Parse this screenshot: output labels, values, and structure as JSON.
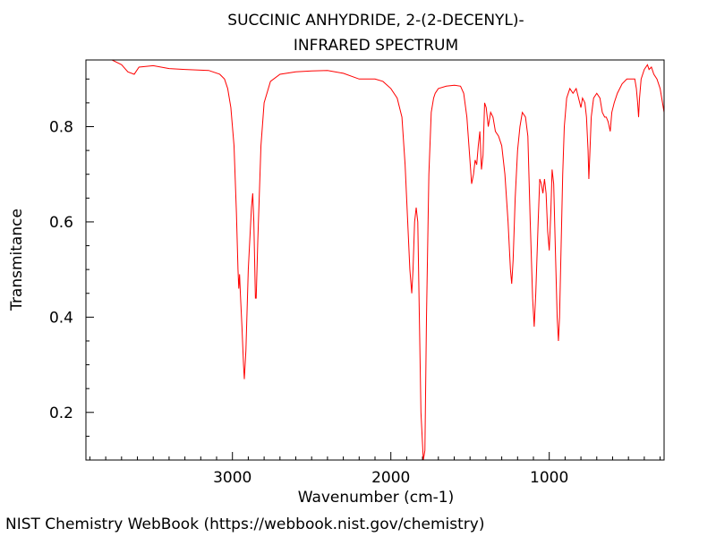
{
  "chart_data": {
    "type": "line",
    "title_line1": "SUCCINIC ANHYDRIDE, 2-(2-DECENYL)-",
    "title_line2": "INFRARED SPECTRUM",
    "xlabel": "Wavenumber (cm-1)",
    "ylabel": "Transmitance",
    "xlim": [
      3925,
      275
    ],
    "ylim": [
      0.1,
      0.94
    ],
    "x_ticks": [
      3000,
      2000,
      1000
    ],
    "x_tick_labels": [
      "3000",
      "2000",
      "1000"
    ],
    "y_ticks": [
      0.2,
      0.4,
      0.6,
      0.8
    ],
    "y_tick_labels": [
      "0.2",
      "0.4",
      "0.6",
      "0.8"
    ],
    "x_minor_step": 100,
    "y_minor_step": 0.05,
    "grid": false,
    "series": [
      {
        "name": "IR spectrum",
        "color": "#ff0000",
        "points": [
          [
            3920,
            0.94
          ],
          [
            3760,
            0.94
          ],
          [
            3700,
            0.93
          ],
          [
            3660,
            0.915
          ],
          [
            3620,
            0.91
          ],
          [
            3590,
            0.925
          ],
          [
            3500,
            0.928
          ],
          [
            3400,
            0.922
          ],
          [
            3300,
            0.92
          ],
          [
            3150,
            0.918
          ],
          [
            3080,
            0.91
          ],
          [
            3050,
            0.9
          ],
          [
            3030,
            0.88
          ],
          [
            3010,
            0.84
          ],
          [
            2990,
            0.76
          ],
          [
            2975,
            0.62
          ],
          [
            2965,
            0.5
          ],
          [
            2960,
            0.46
          ],
          [
            2955,
            0.49
          ],
          [
            2950,
            0.45
          ],
          [
            2940,
            0.38
          ],
          [
            2930,
            0.3
          ],
          [
            2925,
            0.27
          ],
          [
            2915,
            0.33
          ],
          [
            2900,
            0.5
          ],
          [
            2880,
            0.63
          ],
          [
            2872,
            0.66
          ],
          [
            2865,
            0.6
          ],
          [
            2855,
            0.44
          ],
          [
            2850,
            0.44
          ],
          [
            2840,
            0.56
          ],
          [
            2820,
            0.76
          ],
          [
            2800,
            0.85
          ],
          [
            2760,
            0.895
          ],
          [
            2700,
            0.91
          ],
          [
            2600,
            0.915
          ],
          [
            2500,
            0.917
          ],
          [
            2400,
            0.918
          ],
          [
            2300,
            0.912
          ],
          [
            2200,
            0.9
          ],
          [
            2100,
            0.9
          ],
          [
            2050,
            0.895
          ],
          [
            2000,
            0.88
          ],
          [
            1960,
            0.86
          ],
          [
            1930,
            0.82
          ],
          [
            1910,
            0.72
          ],
          [
            1880,
            0.5
          ],
          [
            1868,
            0.45
          ],
          [
            1860,
            0.5
          ],
          [
            1850,
            0.6
          ],
          [
            1840,
            0.63
          ],
          [
            1830,
            0.6
          ],
          [
            1820,
            0.4
          ],
          [
            1810,
            0.2
          ],
          [
            1795,
            0.1
          ],
          [
            1785,
            0.12
          ],
          [
            1775,
            0.4
          ],
          [
            1760,
            0.7
          ],
          [
            1745,
            0.83
          ],
          [
            1730,
            0.86
          ],
          [
            1720,
            0.87
          ],
          [
            1700,
            0.88
          ],
          [
            1650,
            0.885
          ],
          [
            1600,
            0.887
          ],
          [
            1560,
            0.885
          ],
          [
            1540,
            0.87
          ],
          [
            1520,
            0.82
          ],
          [
            1505,
            0.75
          ],
          [
            1490,
            0.68
          ],
          [
            1478,
            0.7
          ],
          [
            1468,
            0.73
          ],
          [
            1458,
            0.72
          ],
          [
            1448,
            0.76
          ],
          [
            1438,
            0.79
          ],
          [
            1428,
            0.71
          ],
          [
            1418,
            0.74
          ],
          [
            1408,
            0.85
          ],
          [
            1398,
            0.84
          ],
          [
            1385,
            0.8
          ],
          [
            1370,
            0.83
          ],
          [
            1355,
            0.82
          ],
          [
            1340,
            0.79
          ],
          [
            1320,
            0.78
          ],
          [
            1300,
            0.76
          ],
          [
            1280,
            0.7
          ],
          [
            1260,
            0.6
          ],
          [
            1245,
            0.5
          ],
          [
            1237,
            0.47
          ],
          [
            1228,
            0.52
          ],
          [
            1215,
            0.65
          ],
          [
            1200,
            0.75
          ],
          [
            1185,
            0.8
          ],
          [
            1170,
            0.83
          ],
          [
            1150,
            0.82
          ],
          [
            1135,
            0.78
          ],
          [
            1120,
            0.6
          ],
          [
            1105,
            0.44
          ],
          [
            1095,
            0.38
          ],
          [
            1085,
            0.45
          ],
          [
            1070,
            0.6
          ],
          [
            1060,
            0.69
          ],
          [
            1050,
            0.68
          ],
          [
            1040,
            0.66
          ],
          [
            1030,
            0.69
          ],
          [
            1020,
            0.66
          ],
          [
            1010,
            0.58
          ],
          [
            1000,
            0.54
          ],
          [
            990,
            0.62
          ],
          [
            982,
            0.71
          ],
          [
            972,
            0.68
          ],
          [
            962,
            0.55
          ],
          [
            950,
            0.4
          ],
          [
            942,
            0.35
          ],
          [
            935,
            0.4
          ],
          [
            925,
            0.55
          ],
          [
            915,
            0.7
          ],
          [
            905,
            0.8
          ],
          [
            890,
            0.86
          ],
          [
            870,
            0.88
          ],
          [
            850,
            0.87
          ],
          [
            830,
            0.88
          ],
          [
            815,
            0.86
          ],
          [
            800,
            0.84
          ],
          [
            790,
            0.86
          ],
          [
            775,
            0.85
          ],
          [
            765,
            0.82
          ],
          [
            755,
            0.75
          ],
          [
            750,
            0.69
          ],
          [
            744,
            0.74
          ],
          [
            735,
            0.82
          ],
          [
            720,
            0.86
          ],
          [
            700,
            0.87
          ],
          [
            680,
            0.86
          ],
          [
            665,
            0.83
          ],
          [
            650,
            0.82
          ],
          [
            640,
            0.82
          ],
          [
            628,
            0.81
          ],
          [
            615,
            0.79
          ],
          [
            605,
            0.83
          ],
          [
            590,
            0.85
          ],
          [
            570,
            0.87
          ],
          [
            540,
            0.89
          ],
          [
            510,
            0.9
          ],
          [
            480,
            0.9
          ],
          [
            460,
            0.9
          ],
          [
            450,
            0.88
          ],
          [
            442,
            0.85
          ],
          [
            436,
            0.82
          ],
          [
            430,
            0.86
          ],
          [
            420,
            0.9
          ],
          [
            400,
            0.92
          ],
          [
            380,
            0.93
          ],
          [
            370,
            0.92
          ],
          [
            355,
            0.925
          ],
          [
            340,
            0.91
          ],
          [
            320,
            0.9
          ],
          [
            300,
            0.88
          ],
          [
            285,
            0.85
          ],
          [
            275,
            0.83
          ]
        ]
      }
    ]
  },
  "footer": {
    "source": "NIST Chemistry WebBook (https://webbook.nist.gov/chemistry)"
  }
}
